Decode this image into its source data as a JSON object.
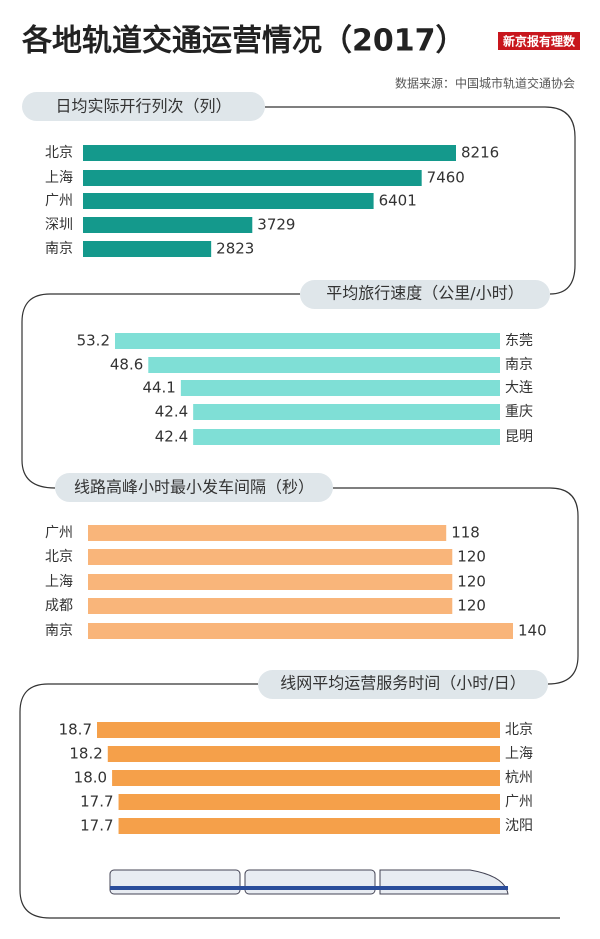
{
  "title": "各地轨道交通运营情况（2017）",
  "logo": "新京报有理数",
  "source": "数据来源：中国城市轨道交通协会",
  "chart_data": [
    {
      "type": "bar",
      "orientation": "horizontal",
      "title": "日均实际开行列次（列）",
      "categories": [
        "北京",
        "上海",
        "广州",
        "深圳",
        "南京"
      ],
      "values": [
        8216,
        7460,
        6401,
        3729,
        2823
      ],
      "color": "#14998c"
    },
    {
      "type": "bar",
      "orientation": "horizontal",
      "title": "平均旅行速度（公里/小时）",
      "categories": [
        "东莞",
        "南京",
        "大连",
        "重庆",
        "昆明"
      ],
      "values": [
        53.2,
        48.6,
        44.1,
        42.4,
        42.4
      ],
      "color": "#7fdfd6"
    },
    {
      "type": "bar",
      "orientation": "horizontal",
      "title": "线路高峰小时最小发车间隔（秒）",
      "categories": [
        "广州",
        "北京",
        "上海",
        "成都",
        "南京"
      ],
      "values": [
        118,
        120,
        120,
        120,
        140
      ],
      "color": "#f9b57a"
    },
    {
      "type": "bar",
      "orientation": "horizontal",
      "title": "线网平均运营服务时间（小时/日）",
      "categories": [
        "北京",
        "上海",
        "杭州",
        "广州",
        "沈阳"
      ],
      "values": [
        18.7,
        18.2,
        18.0,
        17.7,
        17.7
      ],
      "value_labels": [
        "18.7",
        "18.2",
        "18.0",
        "17.7",
        "17.7"
      ],
      "color": "#f5a04a"
    }
  ]
}
